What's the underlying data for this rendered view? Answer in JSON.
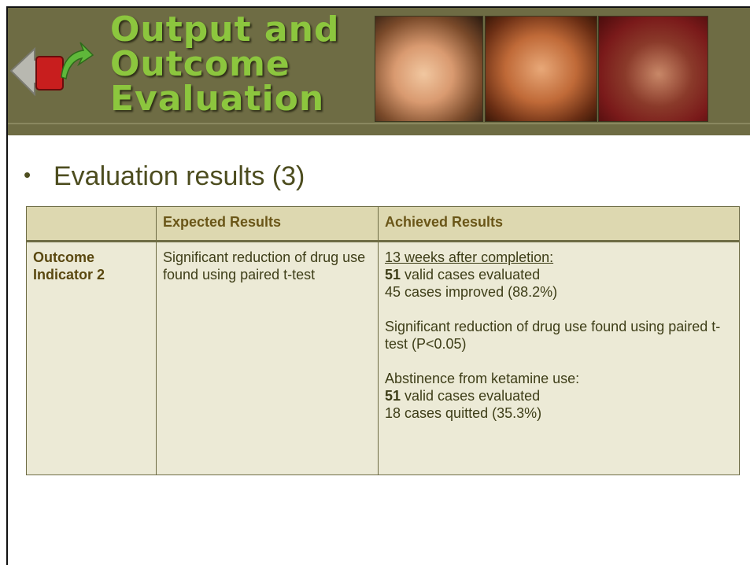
{
  "header": {
    "title": [
      "Output and",
      "Outcome",
      "Evaluation"
    ]
  },
  "bullet": "Evaluation results (3)",
  "table": {
    "headers": [
      "Expected Results",
      "Achieved Results"
    ],
    "row": {
      "label": "Outcome Indicator 2",
      "expected": "Significant reduction of drug use found using paired t-test",
      "achieved": [
        {
          "lines": [
            {
              "text": "13 weeks after completion:"
            },
            {
              "bold": "51",
              "text": "valid cases evaluated"
            },
            {
              "text": "45 cases improved (88.2%)"
            }
          ]
        },
        {
          "lines": [
            {
              "text": "Significant reduction of drug use found using paired t-test (P<0.05)"
            }
          ]
        },
        {
          "lines": [
            {
              "text": "Abstinence from ketamine use:"
            },
            {
              "bold": "51",
              "text": "valid cases evaluated"
            },
            {
              "text": "18 cases quitted (35.3%)"
            }
          ]
        }
      ]
    }
  }
}
